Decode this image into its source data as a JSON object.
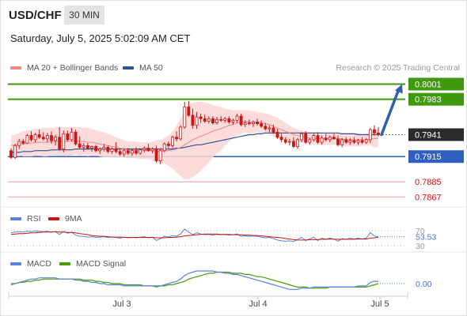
{
  "header": {
    "symbol": "USD/CHF",
    "timeframe": "30 MIN",
    "datetime": "Saturday, July 5, 2025 5:02:09 AM CET"
  },
  "legend": {
    "ma20_label": "MA 20 + Bollinger Bands",
    "ma50_label": "MA 50",
    "credit": "Research © 2025 Trading Central",
    "rsi_label": "RSI",
    "rsi_ma_label": "9MA",
    "macd_label": "MACD",
    "macd_signal_label": "MACD Signal"
  },
  "colors": {
    "ma20": "#f08585",
    "ma50": "#2f5597",
    "bands_fill": "#fbd5d5",
    "candle": "#c71818",
    "support_line": "#2f5fbf",
    "target_line": "#3f9a10",
    "level_line": "#f4b8b8",
    "arrow": "#2f5fa8",
    "current_price_box": "#2b2b2b",
    "rsi": "#5b82d8",
    "rsi_ma": "#cc1111",
    "macd": "#5b82d8",
    "macd_signal": "#4a9a10"
  },
  "chart_data": {
    "type": "candlestick",
    "symbol": "USD/CHF",
    "interval": "30 MIN",
    "x_tick_labels": [
      "Jul 3",
      "Jul 4",
      "Jul 5"
    ],
    "price_range": [
      0.7858,
      0.8008
    ],
    "candles_ohlc": [
      [
        0.7922,
        0.7925,
        0.7912,
        0.7914
      ],
      [
        0.7914,
        0.793,
        0.7912,
        0.7928
      ],
      [
        0.7928,
        0.7936,
        0.7924,
        0.7933
      ],
      [
        0.7933,
        0.7936,
        0.7929,
        0.7931
      ],
      [
        0.7931,
        0.7942,
        0.793,
        0.794
      ],
      [
        0.794,
        0.7945,
        0.7933,
        0.7935
      ],
      [
        0.7935,
        0.7943,
        0.7932,
        0.7941
      ],
      [
        0.7941,
        0.7947,
        0.7936,
        0.7938
      ],
      [
        0.7938,
        0.7944,
        0.7934,
        0.7936
      ],
      [
        0.7936,
        0.7943,
        0.7932,
        0.794
      ],
      [
        0.794,
        0.7945,
        0.793,
        0.7934
      ],
      [
        0.7934,
        0.7941,
        0.7928,
        0.7938
      ],
      [
        0.7938,
        0.795,
        0.7922,
        0.7924
      ],
      [
        0.7924,
        0.7946,
        0.792,
        0.7942
      ],
      [
        0.7942,
        0.7946,
        0.7933,
        0.7935
      ],
      [
        0.7935,
        0.7949,
        0.7933,
        0.7944
      ],
      [
        0.7944,
        0.7947,
        0.7928,
        0.793
      ],
      [
        0.793,
        0.7939,
        0.7924,
        0.7926
      ],
      [
        0.7926,
        0.7931,
        0.7921,
        0.7928
      ],
      [
        0.7928,
        0.7931,
        0.7923,
        0.7925
      ],
      [
        0.7925,
        0.7928,
        0.7921,
        0.7927
      ],
      [
        0.7927,
        0.7929,
        0.792,
        0.7922
      ],
      [
        0.7922,
        0.7926,
        0.7918,
        0.7924
      ],
      [
        0.7924,
        0.793,
        0.7921,
        0.7926
      ],
      [
        0.7926,
        0.7928,
        0.7919,
        0.7921
      ],
      [
        0.7921,
        0.7926,
        0.7918,
        0.7924
      ],
      [
        0.7924,
        0.7932,
        0.7919,
        0.7921
      ],
      [
        0.7921,
        0.7924,
        0.7916,
        0.7918
      ],
      [
        0.7918,
        0.7925,
        0.7915,
        0.7922
      ],
      [
        0.7922,
        0.7925,
        0.7917,
        0.7919
      ],
      [
        0.7919,
        0.7924,
        0.7916,
        0.7922
      ],
      [
        0.7922,
        0.7926,
        0.7917,
        0.7919
      ],
      [
        0.7919,
        0.7925,
        0.7917,
        0.7923
      ],
      [
        0.7923,
        0.7927,
        0.792,
        0.7925
      ],
      [
        0.7925,
        0.793,
        0.7921,
        0.7922
      ],
      [
        0.7922,
        0.7926,
        0.7919,
        0.7924
      ],
      [
        0.7924,
        0.7928,
        0.7908,
        0.791
      ],
      [
        0.791,
        0.7925,
        0.7906,
        0.7922
      ],
      [
        0.7922,
        0.7932,
        0.792,
        0.793
      ],
      [
        0.793,
        0.7933,
        0.7925,
        0.7928
      ],
      [
        0.7928,
        0.794,
        0.7925,
        0.7938
      ],
      [
        0.7938,
        0.7945,
        0.7933,
        0.7936
      ],
      [
        0.7936,
        0.7952,
        0.7934,
        0.795
      ],
      [
        0.795,
        0.798,
        0.7948,
        0.7974
      ],
      [
        0.7974,
        0.7981,
        0.7962,
        0.7964
      ],
      [
        0.7964,
        0.7972,
        0.7948,
        0.7952
      ],
      [
        0.7952,
        0.7968,
        0.7948,
        0.7962
      ],
      [
        0.7962,
        0.7966,
        0.7955,
        0.796
      ],
      [
        0.796,
        0.7965,
        0.7955,
        0.7957
      ],
      [
        0.7957,
        0.7963,
        0.7954,
        0.796
      ],
      [
        0.796,
        0.7963,
        0.7953,
        0.7955
      ],
      [
        0.7955,
        0.7962,
        0.7953,
        0.7959
      ],
      [
        0.7959,
        0.7963,
        0.7956,
        0.7958
      ],
      [
        0.7958,
        0.7962,
        0.7955,
        0.796
      ],
      [
        0.796,
        0.7963,
        0.7954,
        0.7956
      ],
      [
        0.7956,
        0.796,
        0.7953,
        0.7958
      ],
      [
        0.7958,
        0.7966,
        0.7955,
        0.7963
      ],
      [
        0.7963,
        0.7966,
        0.7951,
        0.7953
      ],
      [
        0.7953,
        0.7958,
        0.795,
        0.7955
      ],
      [
        0.7955,
        0.7959,
        0.7952,
        0.7954
      ],
      [
        0.7954,
        0.7958,
        0.795,
        0.7956
      ],
      [
        0.7956,
        0.796,
        0.7952,
        0.7954
      ],
      [
        0.7954,
        0.7958,
        0.7949,
        0.7951
      ],
      [
        0.7951,
        0.7955,
        0.7946,
        0.7948
      ],
      [
        0.7948,
        0.7952,
        0.7944,
        0.7949
      ],
      [
        0.7949,
        0.7953,
        0.7942,
        0.7944
      ],
      [
        0.7944,
        0.7948,
        0.7936,
        0.7938
      ],
      [
        0.7938,
        0.7942,
        0.7932,
        0.7935
      ],
      [
        0.7935,
        0.7938,
        0.793,
        0.7932
      ],
      [
        0.7932,
        0.7936,
        0.7928,
        0.7933
      ],
      [
        0.7933,
        0.7938,
        0.7925,
        0.7927
      ],
      [
        0.7927,
        0.7937,
        0.7924,
        0.7935
      ],
      [
        0.7935,
        0.7944,
        0.7932,
        0.7942
      ],
      [
        0.7942,
        0.7945,
        0.793,
        0.7932
      ],
      [
        0.7932,
        0.7937,
        0.7929,
        0.7935
      ],
      [
        0.7935,
        0.7942,
        0.7933,
        0.794
      ],
      [
        0.794,
        0.7944,
        0.793,
        0.7932
      ],
      [
        0.7932,
        0.794,
        0.7929,
        0.7937
      ],
      [
        0.7937,
        0.7942,
        0.7933,
        0.7935
      ],
      [
        0.7935,
        0.794,
        0.7932,
        0.7938
      ],
      [
        0.7938,
        0.7942,
        0.7935,
        0.7936
      ],
      [
        0.7936,
        0.794,
        0.7927,
        0.7929
      ],
      [
        0.7929,
        0.7937,
        0.7926,
        0.7935
      ],
      [
        0.7935,
        0.7938,
        0.793,
        0.7932
      ],
      [
        0.7932,
        0.7937,
        0.7929,
        0.7934
      ],
      [
        0.7934,
        0.7938,
        0.793,
        0.7932
      ],
      [
        0.7932,
        0.7936,
        0.7929,
        0.7934
      ],
      [
        0.7934,
        0.7938,
        0.793,
        0.7932
      ],
      [
        0.7932,
        0.7937,
        0.793,
        0.7935
      ],
      [
        0.7935,
        0.7949,
        0.7931,
        0.7947
      ],
      [
        0.7947,
        0.7952,
        0.794,
        0.7943
      ],
      [
        0.7943,
        0.795,
        0.7939,
        0.7941
      ]
    ],
    "ma20": [
      0.7928,
      0.7929,
      0.793,
      0.793,
      0.7931,
      0.7931,
      0.7932,
      0.7932,
      0.7932,
      0.7932,
      0.7933,
      0.7933,
      0.7933,
      0.7933,
      0.7933,
      0.7933,
      0.7934,
      0.7933,
      0.7933,
      0.7932,
      0.7932,
      0.7931,
      0.793,
      0.7929,
      0.7928,
      0.7927,
      0.7926,
      0.7925,
      0.7924,
      0.7923,
      0.7923,
      0.7923,
      0.7922,
      0.7922,
      0.7922,
      0.7922,
      0.7921,
      0.7921,
      0.7922,
      0.7922,
      0.7923,
      0.7924,
      0.7926,
      0.7929,
      0.7932,
      0.7935,
      0.7937,
      0.7939,
      0.7941,
      0.7943,
      0.7945,
      0.7947,
      0.7948,
      0.795,
      0.7952,
      0.7953,
      0.7955,
      0.7956,
      0.7957,
      0.7956,
      0.7956,
      0.7956,
      0.7955,
      0.7954,
      0.7953,
      0.7951,
      0.7949,
      0.7947,
      0.7945,
      0.7943,
      0.7941,
      0.794,
      0.7939,
      0.7938,
      0.7937,
      0.7937,
      0.7936,
      0.7936,
      0.7936,
      0.7936,
      0.7936,
      0.7936,
      0.7936,
      0.7935,
      0.7935,
      0.7935,
      0.7935,
      0.7935,
      0.7935,
      0.7936,
      0.7936,
      0.7937
    ],
    "bb_upper": [
      0.794,
      0.7941,
      0.7943,
      0.7945,
      0.7946,
      0.7947,
      0.7948,
      0.7948,
      0.7949,
      0.7949,
      0.7949,
      0.795,
      0.795,
      0.795,
      0.795,
      0.795,
      0.795,
      0.795,
      0.7949,
      0.7949,
      0.7948,
      0.7946,
      0.7945,
      0.7944,
      0.7942,
      0.794,
      0.7938,
      0.7936,
      0.7934,
      0.7933,
      0.7933,
      0.7933,
      0.7932,
      0.7932,
      0.7932,
      0.7933,
      0.7934,
      0.7935,
      0.7937,
      0.794,
      0.7945,
      0.7952,
      0.796,
      0.797,
      0.7976,
      0.7979,
      0.798,
      0.798,
      0.7979,
      0.7978,
      0.7976,
      0.7975,
      0.7974,
      0.7972,
      0.7971,
      0.797,
      0.797,
      0.797,
      0.797,
      0.797,
      0.7969,
      0.7968,
      0.7967,
      0.7966,
      0.7965,
      0.7963,
      0.7961,
      0.7958,
      0.7955,
      0.7952,
      0.7949,
      0.7947,
      0.7946,
      0.7945,
      0.7944,
      0.7944,
      0.7943,
      0.7943,
      0.7943,
      0.7943,
      0.7943,
      0.7943,
      0.7943,
      0.7943,
      0.7943,
      0.7943,
      0.7943,
      0.7942,
      0.7942,
      0.7944,
      0.7946,
      0.7948
    ],
    "bb_lower": [
      0.7916,
      0.7916,
      0.7917,
      0.7915,
      0.7915,
      0.7915,
      0.7916,
      0.7916,
      0.7915,
      0.7915,
      0.7917,
      0.7916,
      0.7916,
      0.7916,
      0.7916,
      0.7916,
      0.7918,
      0.7916,
      0.7917,
      0.7915,
      0.7916,
      0.7916,
      0.7915,
      0.7914,
      0.7914,
      0.7914,
      0.7914,
      0.7914,
      0.7914,
      0.7913,
      0.7913,
      0.7913,
      0.7912,
      0.7912,
      0.7912,
      0.7911,
      0.7908,
      0.7907,
      0.7907,
      0.7904,
      0.7901,
      0.7896,
      0.7892,
      0.7888,
      0.7888,
      0.7891,
      0.7894,
      0.7898,
      0.7903,
      0.7908,
      0.7914,
      0.7919,
      0.7922,
      0.7928,
      0.7933,
      0.7936,
      0.794,
      0.7942,
      0.7944,
      0.7942,
      0.7943,
      0.7944,
      0.7943,
      0.7942,
      0.7941,
      0.7939,
      0.7937,
      0.7936,
      0.7935,
      0.7934,
      0.7933,
      0.7933,
      0.7932,
      0.7931,
      0.793,
      0.793,
      0.7929,
      0.7929,
      0.7929,
      0.7929,
      0.7929,
      0.7929,
      0.7929,
      0.7927,
      0.7927,
      0.7927,
      0.7927,
      0.7928,
      0.7928,
      0.7928,
      0.7926,
      0.7926
    ],
    "ma50": [
      0.792,
      0.792,
      0.792,
      0.7921,
      0.7921,
      0.7921,
      0.7922,
      0.7922,
      0.7922,
      0.7922,
      0.7923,
      0.7923,
      0.7923,
      0.7923,
      0.7923,
      0.7923,
      0.7924,
      0.7924,
      0.7924,
      0.7924,
      0.7924,
      0.7924,
      0.7924,
      0.7924,
      0.7924,
      0.7924,
      0.7924,
      0.7924,
      0.7924,
      0.7924,
      0.7924,
      0.7924,
      0.7924,
      0.7924,
      0.7924,
      0.7924,
      0.7924,
      0.7924,
      0.7924,
      0.7924,
      0.7924,
      0.7925,
      0.7925,
      0.7926,
      0.7927,
      0.7928,
      0.7929,
      0.7929,
      0.793,
      0.7931,
      0.7932,
      0.7933,
      0.7934,
      0.7935,
      0.7936,
      0.7937,
      0.7938,
      0.7939,
      0.794,
      0.7941,
      0.7941,
      0.7942,
      0.7942,
      0.7943,
      0.7943,
      0.7943,
      0.7943,
      0.7943,
      0.7943,
      0.7943,
      0.7943,
      0.7943,
      0.7943,
      0.7943,
      0.7943,
      0.7943,
      0.7943,
      0.7943,
      0.7943,
      0.7943,
      0.7943,
      0.7943,
      0.7942,
      0.7942,
      0.7942,
      0.7942,
      0.7941,
      0.7941,
      0.7941,
      0.7941,
      0.7941,
      0.7941
    ],
    "levels": [
      {
        "value": 0.8001,
        "label": "0.8001",
        "kind": "target"
      },
      {
        "value": 0.7983,
        "label": "0.7983",
        "kind": "target"
      },
      {
        "value": 0.7941,
        "label": "0.7941",
        "kind": "current"
      },
      {
        "value": 0.7915,
        "label": "0.7915",
        "kind": "pivot"
      },
      {
        "value": 0.7885,
        "label": "0.7885",
        "kind": "support"
      },
      {
        "value": 0.7867,
        "label": "0.7867",
        "kind": "support"
      }
    ],
    "projection_arrow": {
      "from": 0.7941,
      "to": 0.8001
    },
    "rsi": {
      "range": [
        20,
        80
      ],
      "ticks": [
        70,
        30
      ],
      "last_value_label": "53.53",
      "values": [
        64,
        66,
        67,
        66,
        68,
        67,
        69,
        68,
        67,
        68,
        66,
        67,
        60,
        68,
        63,
        66,
        58,
        55,
        55,
        53,
        54,
        52,
        53,
        54,
        52,
        53,
        52,
        50,
        53,
        51,
        52,
        51,
        53,
        54,
        51,
        53,
        44,
        49,
        55,
        53,
        57,
        55,
        61,
        74,
        66,
        59,
        64,
        61,
        59,
        60,
        58,
        60,
        59,
        60,
        58,
        59,
        61,
        55,
        56,
        55,
        56,
        55,
        53,
        51,
        52,
        49,
        45,
        43,
        42,
        43,
        41,
        47,
        52,
        44,
        48,
        52,
        44,
        50,
        47,
        50,
        48,
        42,
        49,
        47,
        50,
        48,
        50,
        48,
        50,
        65,
        56,
        54
      ],
      "ma_values": [
        60,
        61,
        62,
        62,
        63,
        64,
        64,
        65,
        66,
        66,
        66,
        67,
        66,
        66,
        65,
        65,
        64,
        62,
        61,
        59,
        57,
        56,
        55,
        55,
        54,
        53,
        53,
        53,
        52,
        52,
        52,
        52,
        52,
        52,
        52,
        52,
        51,
        51,
        51,
        52,
        52,
        53,
        54,
        56,
        57,
        58,
        59,
        60,
        61,
        61,
        61,
        61,
        60,
        60,
        60,
        59,
        59,
        59,
        58,
        58,
        57,
        57,
        56,
        55,
        54,
        53,
        52,
        51,
        49,
        48,
        46,
        45,
        45,
        45,
        46,
        46,
        46,
        47,
        47,
        48,
        47,
        47,
        47,
        47,
        47,
        47,
        48,
        48,
        48,
        50,
        51,
        52
      ]
    },
    "macd": {
      "zero_label": "0.00",
      "values": [
        -0.0001,
        0.0,
        0.0001,
        0.0002,
        0.0003,
        0.0004,
        0.0004,
        0.0005,
        0.0005,
        0.0005,
        0.0005,
        0.0005,
        0.0004,
        0.0004,
        0.0004,
        0.0004,
        0.0003,
        0.0003,
        0.0002,
        0.0002,
        0.0001,
        0.0001,
        0.0,
        0.0,
        -0.0001,
        -0.0001,
        -0.0001,
        -0.0001,
        -0.0002,
        -0.0002,
        -0.0002,
        -0.0002,
        -0.0002,
        -0.0002,
        -0.0002,
        -0.0002,
        -0.0003,
        -0.0002,
        -0.0001,
        0.0,
        0.0001,
        0.0002,
        0.0004,
        0.0007,
        0.0009,
        0.001,
        0.0011,
        0.0011,
        0.0011,
        0.0011,
        0.0011,
        0.001,
        0.001,
        0.0009,
        0.0009,
        0.0008,
        0.0008,
        0.0007,
        0.0006,
        0.0005,
        0.0004,
        0.0003,
        0.0002,
        0.0001,
        0.0,
        -0.0001,
        -0.0002,
        -0.0003,
        -0.0004,
        -0.0005,
        -0.0005,
        -0.0005,
        -0.0004,
        -0.0004,
        -0.0004,
        -0.0003,
        -0.0003,
        -0.0003,
        -0.0003,
        -0.0003,
        -0.0003,
        -0.0003,
        -0.0003,
        -0.0003,
        -0.0003,
        -0.0003,
        -0.0002,
        -0.0002,
        -0.0002,
        0.0001,
        0.0002,
        0.0002
      ],
      "signal_values": [
        0.0,
        0.0,
        0.0001,
        0.0001,
        0.0002,
        0.0002,
        0.0003,
        0.0003,
        0.0004,
        0.0004,
        0.0004,
        0.0004,
        0.0004,
        0.0004,
        0.0004,
        0.0004,
        0.0004,
        0.0004,
        0.0003,
        0.0003,
        0.0003,
        0.0002,
        0.0002,
        0.0001,
        0.0001,
        0.0,
        0.0,
        0.0,
        -0.0001,
        -0.0001,
        -0.0001,
        -0.0001,
        -0.0001,
        -0.0002,
        -0.0002,
        -0.0002,
        -0.0002,
        -0.0002,
        -0.0002,
        -0.0001,
        -0.0001,
        0.0,
        0.0001,
        0.0002,
        0.0004,
        0.0005,
        0.0006,
        0.0007,
        0.0008,
        0.0009,
        0.0009,
        0.001,
        0.001,
        0.001,
        0.001,
        0.0009,
        0.0009,
        0.0009,
        0.0008,
        0.0008,
        0.0007,
        0.0006,
        0.0006,
        0.0005,
        0.0004,
        0.0003,
        0.0002,
        0.0001,
        0.0,
        -0.0001,
        -0.0002,
        -0.0003,
        -0.0003,
        -0.0003,
        -0.0004,
        -0.0004,
        -0.0004,
        -0.0004,
        -0.0004,
        -0.0003,
        -0.0003,
        -0.0003,
        -0.0003,
        -0.0003,
        -0.0003,
        -0.0003,
        -0.0003,
        -0.0003,
        -0.0003,
        -0.0002,
        -0.0001,
        0.0
      ]
    }
  }
}
